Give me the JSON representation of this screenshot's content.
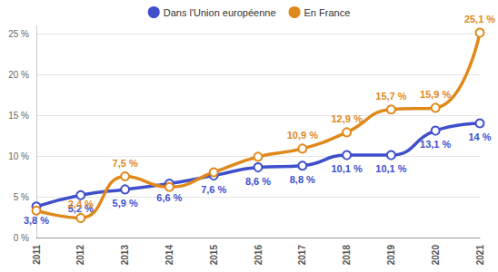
{
  "chart_data": {
    "type": "line",
    "categories": [
      "2011",
      "2012",
      "2013",
      "2014",
      "2015",
      "2016",
      "2017",
      "2018",
      "2019",
      "2020",
      "2021"
    ],
    "series": [
      {
        "name": "Dans l'Union européenne",
        "color": "#3f4fcc",
        "marker": "circle",
        "values": [
          3.8,
          5.2,
          5.9,
          6.6,
          7.6,
          8.6,
          8.8,
          10.1,
          10.1,
          13.1,
          14
        ],
        "value_labels": [
          "3,8 %",
          "5,2 %",
          "5,9 %",
          "6,6 %",
          "7,6 %",
          "8,6 %",
          "8,8 %",
          "10,1 %",
          "10,1 %",
          "13,1 %",
          "14 %"
        ]
      },
      {
        "name": "En France",
        "color": "#e0891b",
        "marker": "circle",
        "values": [
          3.3,
          2.4,
          7.5,
          6.2,
          8.0,
          9.9,
          10.9,
          12.9,
          15.7,
          15.9,
          25.1
        ],
        "value_labels": [
          null,
          "2,4 %",
          "7,5 %",
          null,
          null,
          null,
          "10,9 %",
          "12,9 %",
          "15,7 %",
          "15,9 %",
          "25,1 %"
        ]
      }
    ],
    "ylim": [
      0,
      26
    ],
    "yticks": [
      {
        "value": 0,
        "label": "0 %"
      },
      {
        "value": 5,
        "label": "5 %"
      },
      {
        "value": 10,
        "label": "10 %"
      },
      {
        "value": 15,
        "label": "15 %"
      },
      {
        "value": 20,
        "label": "20 %"
      },
      {
        "value": 25,
        "label": "25 %"
      }
    ],
    "grid": true,
    "legend": "top",
    "data_labels": true
  }
}
